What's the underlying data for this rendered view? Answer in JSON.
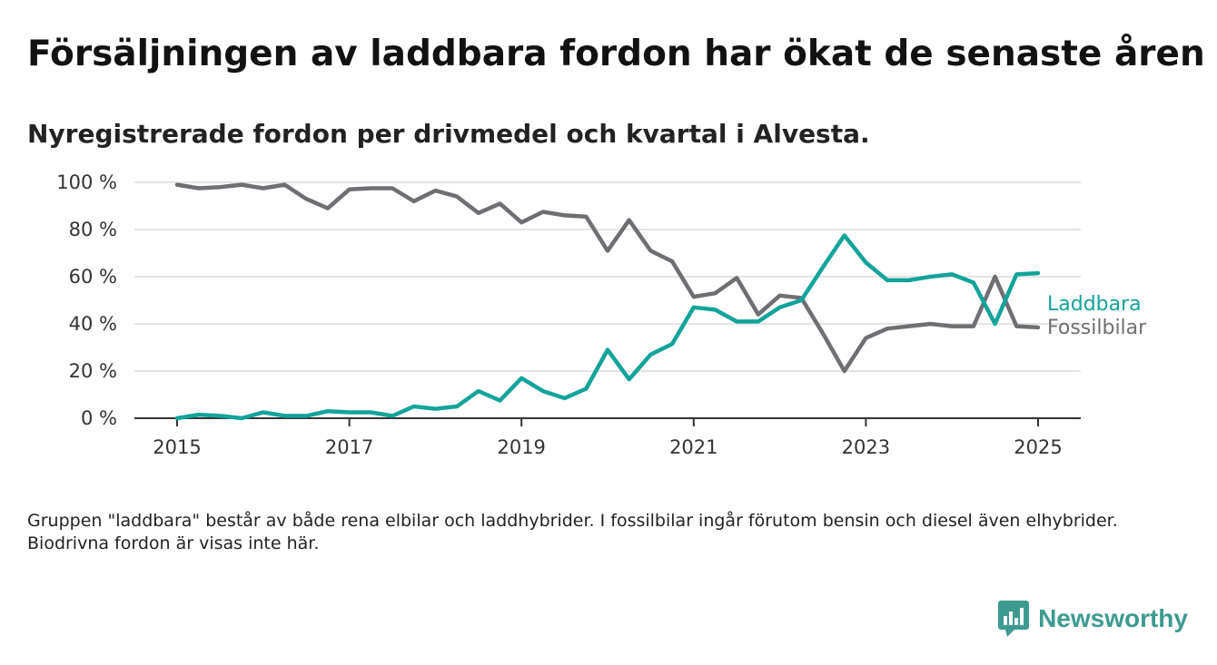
{
  "header": {
    "title": "Försäljningen av laddbara fordon har ökat de senaste åren",
    "subtitle": "Nyregistrerade fordon per drivmedel och kvartal i Alvesta."
  },
  "footer": {
    "note": "Gruppen \"laddbara\" består av både rena elbilar och laddhybrider. I fossilbilar ingår förutom bensin och diesel även elhybrider. Biodrivna fordon är visas inte här.",
    "brand_name": "Newsworthy"
  },
  "colors": {
    "laddbara": "#12a39a",
    "fossilbilar": "#6e6e73",
    "brand": "#3c9a90"
  },
  "chart_data": {
    "type": "line",
    "title": "",
    "xlabel": "",
    "ylabel": "",
    "x_unit": "year",
    "xlim": [
      2014.5,
      2025.5
    ],
    "ylim": [
      0,
      100
    ],
    "x_ticks": [
      2015,
      2017,
      2019,
      2021,
      2023,
      2025
    ],
    "y_ticks": [
      0,
      20,
      40,
      60,
      80,
      100
    ],
    "y_tick_labels": [
      "0 %",
      "20 %",
      "40 %",
      "60 %",
      "80 %",
      "100 %"
    ],
    "grid": true,
    "legend": "direct labels at line ends (right)",
    "x": [
      2015.0,
      2015.25,
      2015.5,
      2015.75,
      2016.0,
      2016.25,
      2016.5,
      2016.75,
      2017.0,
      2017.25,
      2017.5,
      2017.75,
      2018.0,
      2018.25,
      2018.5,
      2018.75,
      2019.0,
      2019.25,
      2019.5,
      2019.75,
      2020.0,
      2020.25,
      2020.5,
      2020.75,
      2021.0,
      2021.25,
      2021.5,
      2021.75,
      2022.0,
      2022.25,
      2022.5,
      2022.75,
      2023.0,
      2023.25,
      2023.5,
      2023.75,
      2024.0,
      2024.25,
      2024.5,
      2024.75,
      2025.0
    ],
    "series": [
      {
        "name": "Laddbara",
        "color": "#12a39a",
        "values": [
          0,
          1.5,
          1,
          0,
          2.5,
          1,
          1,
          3,
          2.5,
          2.5,
          1,
          5,
          4,
          5,
          11.5,
          7.5,
          17,
          11.5,
          8.5,
          12.5,
          29,
          16.5,
          27,
          31.5,
          47,
          46,
          41,
          41,
          47,
          50,
          64,
          77.5,
          66,
          58.5,
          58.5,
          60,
          61,
          57.5,
          40,
          61,
          61.5
        ]
      },
      {
        "name": "Fossilbilar",
        "color": "#6e6e73",
        "values": [
          99,
          97.5,
          98,
          99,
          97.5,
          99,
          93,
          89,
          97,
          97.5,
          97.5,
          92,
          96.5,
          94,
          87,
          91,
          83,
          87.5,
          86,
          85.5,
          71,
          84,
          71,
          66.5,
          51.5,
          53,
          59.5,
          44,
          52,
          51,
          36,
          20,
          34,
          38,
          39,
          40,
          39,
          39,
          60,
          39,
          38.5
        ]
      }
    ]
  }
}
